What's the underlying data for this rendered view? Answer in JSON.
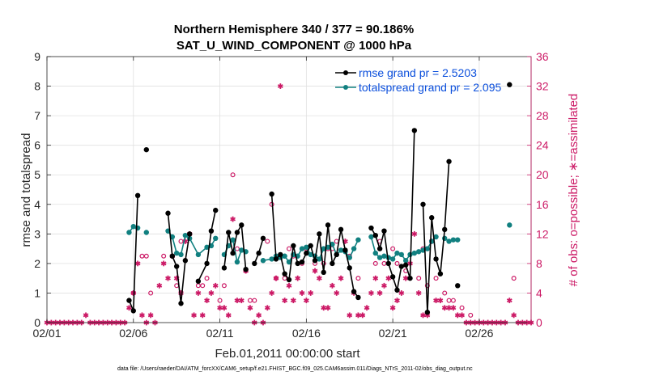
{
  "chart_data": {
    "type": "line",
    "title": "Northern Hemisphere 340 / 377 = 90.186%",
    "subtitle": "SAT_U_WIND_COMPONENT @ 1000 hPa",
    "xlabel": "Feb.01,2011 00:00:00 start",
    "ylabel": "rmse and totalspread",
    "ylabel_right": "# of obs: o=possible; ∗=assimilated",
    "footer": "data file: /Users/raeder/DAI/ATM_forcXX/CAM6_setup/f.e21.FHIST_BGC.f09_025.CAM6assim.011/Diags_NTrS_2011-02/obs_diag_output.nc",
    "x_ticks": [
      {
        "day": 0,
        "label": "02/01"
      },
      {
        "day": 5,
        "label": "02/06"
      },
      {
        "day": 10,
        "label": "02/11"
      },
      {
        "day": 15,
        "label": "02/16"
      },
      {
        "day": 20,
        "label": "02/21"
      },
      {
        "day": 25,
        "label": "02/26"
      }
    ],
    "xlim": [
      0,
      28
    ],
    "ylim": [
      0,
      9
    ],
    "y_ticks": [
      "0",
      "1",
      "2",
      "3",
      "4",
      "5",
      "6",
      "7",
      "8",
      "9"
    ],
    "ylim_right": [
      0,
      36
    ],
    "y_ticks_right": [
      "0",
      "4",
      "8",
      "12",
      "16",
      "20",
      "24",
      "28",
      "32",
      "36"
    ],
    "legend": {
      "location": "top-right",
      "rmse": "rmse grand pr = 2.5203",
      "spread": "totalspread grand pr = 2.095"
    },
    "colors": {
      "rmse": "#000000",
      "spread": "#118080",
      "obs": "#cc1a66",
      "legend_text": "#0b4fdc"
    },
    "series": [
      {
        "name": "rmse",
        "points": [
          [
            4.75,
            0.75
          ],
          [
            5.0,
            0.4
          ],
          [
            5.25,
            4.3
          ],
          [
            null,
            null
          ],
          [
            5.75,
            5.85
          ],
          [
            null,
            null
          ],
          [
            7.0,
            3.7
          ],
          [
            7.25,
            2.25
          ],
          [
            7.5,
            1.9
          ],
          [
            7.75,
            0.65
          ],
          [
            8.0,
            2.1
          ],
          [
            8.25,
            3.0
          ],
          [
            null,
            null
          ],
          [
            8.75,
            1.4
          ],
          [
            9.25,
            2.0
          ],
          [
            9.5,
            3.1
          ],
          [
            9.75,
            3.8
          ],
          [
            null,
            null
          ],
          [
            10.25,
            1.85
          ],
          [
            10.5,
            3.05
          ],
          [
            10.75,
            2.35
          ],
          [
            11.0,
            3.05
          ],
          [
            11.25,
            3.3
          ],
          [
            11.5,
            1.8
          ],
          [
            null,
            null
          ],
          [
            12.0,
            2.0
          ],
          [
            12.25,
            2.35
          ],
          [
            12.5,
            2.85
          ],
          [
            null,
            null
          ],
          [
            13.0,
            4.35
          ],
          [
            13.25,
            2.15
          ],
          [
            13.5,
            2.3
          ],
          [
            13.75,
            1.65
          ],
          [
            14.0,
            1.45
          ],
          [
            14.25,
            2.6
          ],
          [
            14.5,
            2.0
          ],
          [
            14.75,
            2.05
          ],
          [
            15.0,
            2.35
          ],
          [
            15.25,
            2.6
          ],
          [
            15.5,
            2.1
          ],
          [
            15.75,
            3.0
          ],
          [
            16.0,
            1.7
          ],
          [
            16.25,
            3.3
          ],
          [
            16.5,
            2.0
          ],
          [
            16.75,
            2.3
          ],
          [
            17.0,
            3.15
          ],
          [
            17.25,
            2.45
          ],
          [
            17.5,
            1.85
          ],
          [
            17.75,
            1.05
          ],
          [
            18.0,
            0.85
          ],
          [
            null,
            null
          ],
          [
            18.75,
            3.2
          ],
          [
            19.0,
            2.95
          ],
          [
            19.25,
            2.5
          ],
          [
            19.5,
            3.1
          ],
          [
            19.75,
            2.0
          ],
          [
            20.0,
            1.55
          ],
          [
            20.25,
            1.1
          ],
          [
            20.5,
            1.9
          ],
          [
            20.75,
            1.95
          ],
          [
            21.0,
            1.5
          ],
          [
            21.25,
            6.5
          ],
          [
            null,
            null
          ],
          [
            21.75,
            4.0
          ],
          [
            22.0,
            0.35
          ],
          [
            22.25,
            3.55
          ],
          [
            22.5,
            2.15
          ],
          [
            22.75,
            1.65
          ],
          [
            23.0,
            3.15
          ],
          [
            23.25,
            5.45
          ],
          [
            null,
            null
          ],
          [
            23.75,
            1.25
          ],
          [
            null,
            null
          ],
          [
            26.75,
            8.05
          ]
        ]
      },
      {
        "name": "totalspread",
        "points": [
          [
            4.75,
            3.05
          ],
          [
            5.0,
            3.25
          ],
          [
            5.25,
            3.2
          ],
          [
            null,
            null
          ],
          [
            5.75,
            3.05
          ],
          [
            null,
            null
          ],
          [
            7.0,
            3.1
          ],
          [
            7.25,
            2.9
          ],
          [
            7.5,
            2.35
          ],
          [
            7.75,
            2.3
          ],
          [
            8.0,
            2.95
          ],
          [
            8.25,
            2.85
          ],
          [
            8.75,
            2.3
          ],
          [
            9.25,
            2.55
          ],
          [
            9.5,
            2.6
          ],
          [
            9.75,
            2.85
          ],
          [
            null,
            null
          ],
          [
            10.25,
            2.3
          ],
          [
            10.5,
            2.6
          ],
          [
            10.75,
            2.8
          ],
          [
            11.0,
            2.05
          ],
          [
            11.25,
            2.45
          ],
          [
            11.5,
            2.4
          ],
          [
            null,
            null
          ],
          [
            12.5,
            2.1
          ],
          [
            13.0,
            2.15
          ],
          [
            13.25,
            2.25
          ],
          [
            13.5,
            2.2
          ],
          [
            13.75,
            2.25
          ],
          [
            14.0,
            2.05
          ],
          [
            14.25,
            2.3
          ],
          [
            14.5,
            2.25
          ],
          [
            14.75,
            2.5
          ],
          [
            15.0,
            2.55
          ],
          [
            15.25,
            2.3
          ],
          [
            15.5,
            2.25
          ],
          [
            15.75,
            2.15
          ],
          [
            16.0,
            2.5
          ],
          [
            16.25,
            2.55
          ],
          [
            16.5,
            2.65
          ],
          [
            16.75,
            2.3
          ],
          [
            17.0,
            2.45
          ],
          [
            17.25,
            2.4
          ],
          [
            17.5,
            2.2
          ],
          [
            17.75,
            2.5
          ],
          [
            18.0,
            2.8
          ],
          [
            null,
            null
          ],
          [
            18.75,
            2.9
          ],
          [
            19.0,
            2.35
          ],
          [
            19.25,
            2.2
          ],
          [
            19.5,
            2.25
          ],
          [
            19.75,
            2.2
          ],
          [
            20.0,
            2.15
          ],
          [
            20.25,
            2.35
          ],
          [
            20.5,
            2.3
          ],
          [
            20.75,
            2.1
          ],
          [
            21.0,
            2.3
          ],
          [
            21.25,
            2.35
          ],
          [
            21.5,
            2.4
          ],
          [
            21.75,
            2.45
          ],
          [
            22.0,
            2.5
          ],
          [
            22.25,
            2.75
          ],
          [
            22.5,
            2.9
          ],
          [
            null,
            null
          ],
          [
            23.0,
            2.85
          ],
          [
            23.25,
            2.75
          ],
          [
            23.5,
            2.8
          ],
          [
            23.75,
            2.8
          ],
          [
            null,
            null
          ],
          [
            26.75,
            3.3
          ]
        ]
      },
      {
        "name": "obs_possible",
        "marker": "o",
        "points": [
          [
            5.0,
            4
          ],
          [
            5.5,
            9
          ],
          [
            5.75,
            9
          ],
          [
            6.0,
            4
          ],
          [
            6.75,
            9
          ],
          [
            7.5,
            5
          ],
          [
            7.75,
            11
          ],
          [
            8.25,
            12
          ],
          [
            8.75,
            5
          ],
          [
            9.0,
            5
          ],
          [
            9.25,
            6
          ],
          [
            10.0,
            3
          ],
          [
            10.25,
            5
          ],
          [
            10.75,
            20
          ],
          [
            11.0,
            10
          ],
          [
            11.5,
            7
          ],
          [
            11.75,
            3
          ],
          [
            12.0,
            3
          ],
          [
            12.75,
            11
          ],
          [
            13.0,
            16
          ],
          [
            13.25,
            6
          ],
          [
            13.75,
            6
          ],
          [
            14.0,
            10
          ],
          [
            14.25,
            9
          ],
          [
            14.75,
            8
          ],
          [
            15.0,
            10
          ],
          [
            15.5,
            8
          ],
          [
            16.0,
            8
          ],
          [
            16.25,
            10
          ],
          [
            16.5,
            10
          ],
          [
            16.75,
            11
          ],
          [
            17.5,
            9
          ],
          [
            18.0,
            6
          ],
          [
            19.0,
            8
          ],
          [
            19.25,
            11
          ],
          [
            19.5,
            8
          ],
          [
            20.0,
            10
          ],
          [
            20.25,
            8
          ],
          [
            20.75,
            7
          ],
          [
            21.0,
            6
          ],
          [
            21.5,
            6
          ],
          [
            21.75,
            10
          ],
          [
            22.0,
            5
          ],
          [
            22.5,
            6
          ],
          [
            23.0,
            4
          ],
          [
            23.25,
            3
          ],
          [
            23.5,
            3
          ],
          [
            24.0,
            2
          ],
          [
            24.5,
            1
          ],
          [
            27.0,
            6
          ]
        ]
      },
      {
        "name": "obs_assimilated",
        "marker": "*",
        "points": [
          [
            0,
            0
          ],
          [
            0.25,
            0
          ],
          [
            0.5,
            0
          ],
          [
            0.75,
            0
          ],
          [
            1.0,
            0
          ],
          [
            1.25,
            0
          ],
          [
            1.5,
            0
          ],
          [
            1.75,
            0
          ],
          [
            2.0,
            0
          ],
          [
            2.25,
            1
          ],
          [
            2.5,
            0
          ],
          [
            2.75,
            0
          ],
          [
            3.0,
            0
          ],
          [
            3.25,
            0
          ],
          [
            3.5,
            0
          ],
          [
            3.75,
            0
          ],
          [
            4.0,
            0
          ],
          [
            4.25,
            0
          ],
          [
            4.5,
            0
          ],
          [
            4.75,
            2
          ],
          [
            5.0,
            4
          ],
          [
            5.25,
            8
          ],
          [
            5.5,
            1
          ],
          [
            5.75,
            0
          ],
          [
            6.0,
            1
          ],
          [
            6.25,
            0
          ],
          [
            6.5,
            5
          ],
          [
            6.75,
            8
          ],
          [
            7.0,
            6
          ],
          [
            7.25,
            9
          ],
          [
            7.5,
            6
          ],
          [
            7.75,
            4
          ],
          [
            8.0,
            11
          ],
          [
            8.25,
            12
          ],
          [
            8.5,
            1
          ],
          [
            8.75,
            4
          ],
          [
            9.0,
            1
          ],
          [
            9.25,
            3
          ],
          [
            9.5,
            4
          ],
          [
            9.75,
            5
          ],
          [
            10.0,
            2
          ],
          [
            10.25,
            2
          ],
          [
            10.5,
            1
          ],
          [
            10.75,
            14
          ],
          [
            11.0,
            3
          ],
          [
            11.25,
            3
          ],
          [
            11.5,
            7
          ],
          [
            11.75,
            2
          ],
          [
            12.0,
            0
          ],
          [
            12.25,
            1
          ],
          [
            12.5,
            0
          ],
          [
            12.75,
            2
          ],
          [
            13.0,
            4
          ],
          [
            13.25,
            6
          ],
          [
            13.5,
            32
          ],
          [
            13.75,
            3
          ],
          [
            14.0,
            5
          ],
          [
            14.25,
            3
          ],
          [
            14.5,
            6
          ],
          [
            14.75,
            4
          ],
          [
            15.0,
            3
          ],
          [
            15.25,
            4
          ],
          [
            15.5,
            7
          ],
          [
            15.75,
            6
          ],
          [
            16.0,
            2
          ],
          [
            16.25,
            2
          ],
          [
            16.5,
            5
          ],
          [
            16.75,
            4
          ],
          [
            17.0,
            6
          ],
          [
            17.25,
            11
          ],
          [
            17.5,
            1
          ],
          [
            17.75,
            4
          ],
          [
            18.0,
            1
          ],
          [
            18.25,
            1
          ],
          [
            18.5,
            2
          ],
          [
            18.75,
            4
          ],
          [
            19.0,
            6
          ],
          [
            19.25,
            4
          ],
          [
            19.5,
            5
          ],
          [
            19.75,
            6
          ],
          [
            20.0,
            2
          ],
          [
            20.25,
            3
          ],
          [
            20.5,
            4
          ],
          [
            20.75,
            6
          ],
          [
            21.0,
            8
          ],
          [
            21.25,
            12
          ],
          [
            21.5,
            4
          ],
          [
            21.75,
            1
          ],
          [
            22.0,
            1
          ],
          [
            22.25,
            11
          ],
          [
            22.5,
            3
          ],
          [
            22.75,
            3
          ],
          [
            23.0,
            2
          ],
          [
            23.25,
            2
          ],
          [
            23.5,
            2
          ],
          [
            23.75,
            1
          ],
          [
            24.0,
            1
          ],
          [
            24.25,
            0
          ],
          [
            24.5,
            0
          ],
          [
            24.75,
            0
          ],
          [
            25.0,
            0
          ],
          [
            25.25,
            0
          ],
          [
            25.5,
            0
          ],
          [
            25.75,
            0
          ],
          [
            26.0,
            0
          ],
          [
            26.25,
            0
          ],
          [
            26.5,
            0
          ],
          [
            26.75,
            3
          ],
          [
            27.0,
            1
          ],
          [
            27.25,
            0
          ],
          [
            27.5,
            0
          ],
          [
            27.75,
            0
          ],
          [
            28.0,
            0
          ]
        ]
      }
    ]
  }
}
